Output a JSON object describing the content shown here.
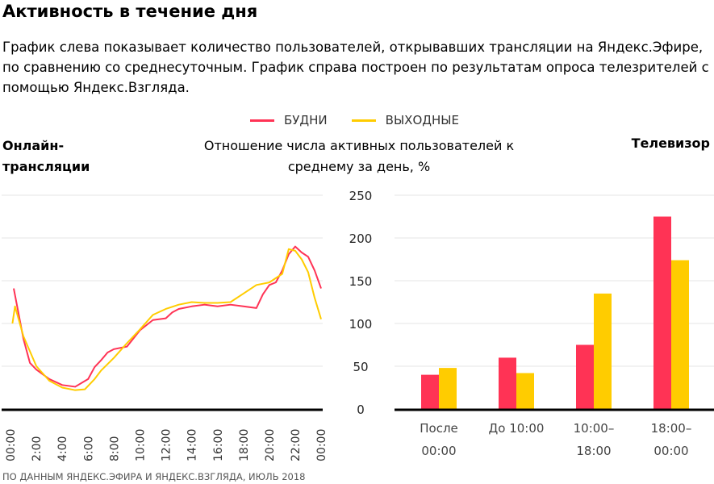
{
  "title": "Активность в течение дня",
  "description": "График слева показывает количество пользователей, открывавших трансляции на Яндекс.Эфире, по сравнению со среднесуточным. График справа построен по результатам опроса телезрителей с помощью Яндекс.Взгляда.",
  "legend": [
    {
      "label": "БУДНИ",
      "color": "#ff3355"
    },
    {
      "label": "ВЫХОДНЫЕ",
      "color": "#ffcc00"
    }
  ],
  "left_title": "Онлайн-трансляции",
  "center_title": "Отношение числа активных пользователей к среднему за день, %",
  "right_title": "Телевизор",
  "source": "ПО ДАННЫМ ЯНДЕКС.ЭФИРА И ЯНДЕКС.ВЗГЛЯДА, ИЮЛЬ 2018",
  "chart_data": [
    {
      "type": "line",
      "title": "Онлайн-трансляции",
      "ylim": [
        0,
        250
      ],
      "xlim": [
        0,
        24
      ],
      "xticks": [
        "00:00",
        "2:00",
        "4:00",
        "6:00",
        "8:00",
        "10:00",
        "12:00",
        "14:00",
        "16:00",
        "18:00",
        "20:00",
        "22:00",
        "00:00"
      ],
      "series": [
        {
          "name": "БУДНИ",
          "color": "#ff3355",
          "x": [
            0.25,
            1,
            1.5,
            2,
            3,
            4,
            5,
            6,
            6.5,
            7,
            7.5,
            8,
            9,
            10,
            11,
            12,
            12.5,
            13,
            14,
            15,
            16,
            17,
            18,
            19,
            19.5,
            20,
            20.5,
            21,
            21.5,
            22,
            22.5,
            23,
            23.5,
            24
          ],
          "values": [
            141,
            82,
            54,
            46,
            35,
            28,
            26,
            35,
            49,
            57,
            66,
            70,
            73,
            92,
            104,
            106,
            113,
            117,
            120,
            122,
            120,
            122,
            120,
            118,
            134,
            145,
            148,
            162,
            181,
            190,
            183,
            178,
            162,
            141
          ]
        },
        {
          "name": "ВЫХОДНЫЕ",
          "color": "#ffcc00",
          "x": [
            0.15,
            0.35,
            1,
            2,
            3,
            4,
            5,
            5.75,
            6.5,
            7,
            8,
            9,
            10,
            11,
            12,
            13,
            14,
            15,
            16,
            17,
            18,
            19,
            20,
            21,
            21.5,
            22,
            22.5,
            23,
            23.5,
            24
          ],
          "values": [
            100,
            120,
            85,
            50,
            33,
            25,
            22,
            23,
            35,
            45,
            60,
            77,
            93,
            110,
            117,
            122,
            125,
            124,
            124,
            125,
            135,
            145,
            148,
            158,
            187,
            185,
            175,
            160,
            130,
            105
          ]
        }
      ]
    },
    {
      "type": "bar",
      "title": "Телевизор",
      "ylim": [
        0,
        250
      ],
      "yticks": [
        0,
        50,
        100,
        150,
        200,
        250
      ],
      "categories": [
        [
          "После",
          "00:00"
        ],
        [
          "До 10:00",
          ""
        ],
        [
          "10:00–",
          "18:00"
        ],
        [
          "18:00–",
          "00:00"
        ]
      ],
      "series": [
        {
          "name": "БУДНИ",
          "color": "#ff3355",
          "values": [
            40,
            60,
            75,
            225
          ]
        },
        {
          "name": "ВЫХОДНЫЕ",
          "color": "#ffcc00",
          "values": [
            48,
            42,
            135,
            174
          ]
        }
      ]
    }
  ]
}
